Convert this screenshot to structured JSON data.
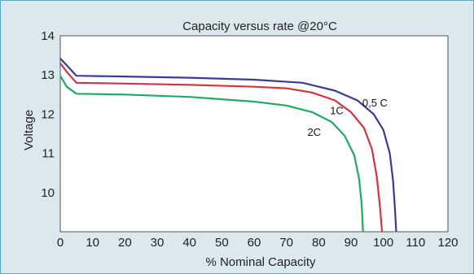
{
  "chart_data": {
    "type": "line",
    "title": "Capacity versus rate @20°C",
    "xlabel": "% Nominal Capacity",
    "ylabel": "Voltage",
    "xlim": [
      0,
      120
    ],
    "ylim": [
      9,
      14
    ],
    "xticks": [
      0,
      10,
      20,
      30,
      40,
      50,
      60,
      70,
      80,
      90,
      100,
      110,
      120
    ],
    "yticks": [
      10,
      11,
      12,
      13,
      14
    ],
    "grid": false,
    "colors": {
      "background": "#dbe9ee",
      "plot_area": "#ffffff",
      "border": "#5aa8c6"
    },
    "series": [
      {
        "name": "0,5 C",
        "color": "#3a3a9a",
        "points": [
          [
            0,
            13.42
          ],
          [
            2,
            13.25
          ],
          [
            5,
            12.98
          ],
          [
            20,
            12.96
          ],
          [
            40,
            12.93
          ],
          [
            60,
            12.88
          ],
          [
            75,
            12.8
          ],
          [
            85,
            12.6
          ],
          [
            92,
            12.35
          ],
          [
            97,
            12.0
          ],
          [
            100,
            11.6
          ],
          [
            102,
            11.0
          ],
          [
            103,
            10.3
          ],
          [
            103.6,
            9.6
          ],
          [
            104,
            9.0
          ]
        ]
      },
      {
        "name": "1C",
        "color": "#d63340",
        "points": [
          [
            0,
            13.3
          ],
          [
            2,
            13.08
          ],
          [
            5,
            12.8
          ],
          [
            20,
            12.78
          ],
          [
            40,
            12.75
          ],
          [
            60,
            12.7
          ],
          [
            70,
            12.66
          ],
          [
            78,
            12.55
          ],
          [
            85,
            12.35
          ],
          [
            90,
            12.05
          ],
          [
            94,
            11.65
          ],
          [
            96.5,
            11.1
          ],
          [
            98,
            10.4
          ],
          [
            99,
            9.6
          ],
          [
            99.6,
            9.0
          ]
        ]
      },
      {
        "name": "2C",
        "color": "#1faa66",
        "points": [
          [
            0,
            12.98
          ],
          [
            2,
            12.7
          ],
          [
            5,
            12.52
          ],
          [
            20,
            12.5
          ],
          [
            40,
            12.44
          ],
          [
            60,
            12.32
          ],
          [
            70,
            12.22
          ],
          [
            78,
            12.05
          ],
          [
            84,
            11.8
          ],
          [
            88,
            11.45
          ],
          [
            91,
            10.95
          ],
          [
            92.5,
            10.35
          ],
          [
            93.3,
            9.7
          ],
          [
            93.7,
            9.0
          ]
        ]
      }
    ]
  }
}
